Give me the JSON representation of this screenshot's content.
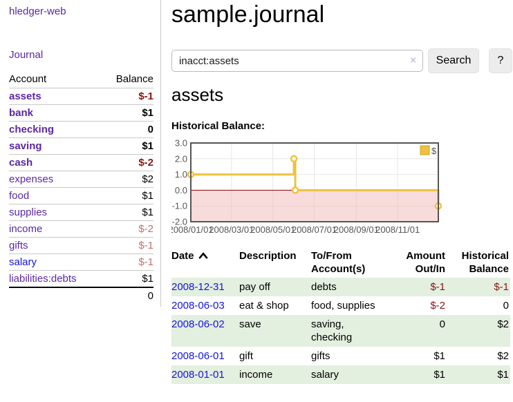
{
  "app": {
    "brand": "hledger-web"
  },
  "colors": {
    "purple_link": "#5b27a5",
    "blue_link": "#1414e0",
    "negative_strong": "#8b1313",
    "negative_soft": "#c07070",
    "row_green": "#e3efdf",
    "series_gold": "#edc240"
  },
  "sidebar": {
    "nav": {
      "journal_label": "Journal"
    },
    "accounts_table": {
      "headers": [
        "Account",
        "Balance"
      ],
      "rows": [
        {
          "name": "assets",
          "balance": "$-1",
          "depth": 1,
          "bold": true,
          "balance_tone": "neg-strong",
          "link": "purple"
        },
        {
          "name": "bank",
          "balance": "$1",
          "depth": 2,
          "bold": true,
          "balance_tone": "pos",
          "link": "purple"
        },
        {
          "name": "checking",
          "balance": "0",
          "depth": 3,
          "bold": true,
          "balance_tone": "pos",
          "link": "purple"
        },
        {
          "name": "saving",
          "balance": "$1",
          "depth": 3,
          "bold": true,
          "balance_tone": "pos",
          "link": "purple"
        },
        {
          "name": "cash",
          "balance": "$-2",
          "depth": 2,
          "bold": true,
          "balance_tone": "neg-strong",
          "link": "purple"
        },
        {
          "name": "expenses",
          "balance": "$2",
          "depth": 1,
          "bold": false,
          "balance_tone": "pos",
          "link": "purple"
        },
        {
          "name": "food",
          "balance": "$1",
          "depth": 2,
          "bold": false,
          "balance_tone": "pos",
          "link": "purple"
        },
        {
          "name": "supplies",
          "balance": "$1",
          "depth": 2,
          "bold": false,
          "balance_tone": "pos",
          "link": "purple"
        },
        {
          "name": "income",
          "balance": "$-2",
          "depth": 1,
          "bold": false,
          "balance_tone": "neg-soft",
          "link": "purple"
        },
        {
          "name": "gifts",
          "balance": "$-1",
          "depth": 2,
          "bold": false,
          "balance_tone": "neg-soft",
          "link": "purple"
        },
        {
          "name": "salary",
          "balance": "$-1",
          "depth": 2,
          "bold": false,
          "balance_tone": "neg-soft",
          "link": "blue"
        },
        {
          "name": "liabilities:debts",
          "balance": "$1",
          "depth": 1,
          "bold": false,
          "balance_tone": "pos",
          "link": "purple"
        }
      ],
      "total": "0"
    }
  },
  "main": {
    "title": "sample.journal",
    "search": {
      "value": "inacct:assets",
      "placeholder": "",
      "clear_icon": "×",
      "submit_label": "Search",
      "help_label": "?"
    },
    "account_heading": "assets",
    "chart_heading": "Historical Balance:"
  },
  "chart_data": {
    "type": "line",
    "subtype": "step",
    "title": "Historical Balance:",
    "series": [
      {
        "name": "$",
        "color": "#edc240",
        "points": [
          {
            "x": "2008-01-01",
            "y": 1
          },
          {
            "x": "2008-06-01",
            "y": 2
          },
          {
            "x": "2008-06-03",
            "y": 0
          },
          {
            "x": "2008-12-31",
            "y": -1
          }
        ]
      }
    ],
    "x_range": [
      "2008-01-01",
      "2008-12-31"
    ],
    "ylim": [
      -2.0,
      3.0
    ],
    "ytick_labels": [
      "3.0",
      "2.0",
      "1.0",
      "0.0",
      "-1.0",
      "-2.0"
    ],
    "yticks": [
      3.0,
      2.0,
      1.0,
      0.0,
      -1.0,
      -2.0
    ],
    "xticks": [
      "2008-01-01",
      "2008-03-01",
      "2008-05-01",
      "2008-07-01",
      "2008-09-01",
      "2008-11-01"
    ],
    "xtick_labels": [
      "2008/01/01",
      "2008/03/01",
      "2008/05/01",
      "2008/07/01",
      "2008/09/01",
      "2008/11/01"
    ],
    "legend": {
      "position": "top-right",
      "entries": [
        {
          "label": "$",
          "color": "#edc240"
        }
      ]
    },
    "grid": true,
    "negative_region_fill": "#f2b8b8",
    "zero_line_color": "#8b0000",
    "border_color": "#545454"
  },
  "register": {
    "headers": {
      "date": {
        "top": "Date",
        "bottom": ""
      },
      "desc": {
        "top": "Description",
        "bottom": ""
      },
      "accts": {
        "top": "To/From",
        "bottom": "Account(s)"
      },
      "amount": {
        "top": "Amount",
        "bottom": "Out/In"
      },
      "balance": {
        "top": "Historical",
        "bottom": "Balance"
      }
    },
    "sort_icon": "chevron-up",
    "rows": [
      {
        "date": "2008-12-31",
        "description": "pay off",
        "accounts": "debts",
        "amount": "$-1",
        "balance": "$-1",
        "amount_tone": "neg-strong",
        "balance_tone": "neg-strong"
      },
      {
        "date": "2008-06-03",
        "description": "eat & shop",
        "accounts": "food, supplies",
        "amount": "$-2",
        "balance": "0",
        "amount_tone": "neg-strong",
        "balance_tone": "pos"
      },
      {
        "date": "2008-06-02",
        "description": "save",
        "accounts": "saving, checking",
        "amount": "0",
        "balance": "$2",
        "amount_tone": "pos",
        "balance_tone": "pos"
      },
      {
        "date": "2008-06-01",
        "description": "gift",
        "accounts": "gifts",
        "amount": "$1",
        "balance": "$2",
        "amount_tone": "pos",
        "balance_tone": "pos"
      },
      {
        "date": "2008-01-01",
        "description": "income",
        "accounts": "salary",
        "amount": "$1",
        "balance": "$1",
        "amount_tone": "pos",
        "balance_tone": "pos"
      }
    ]
  }
}
